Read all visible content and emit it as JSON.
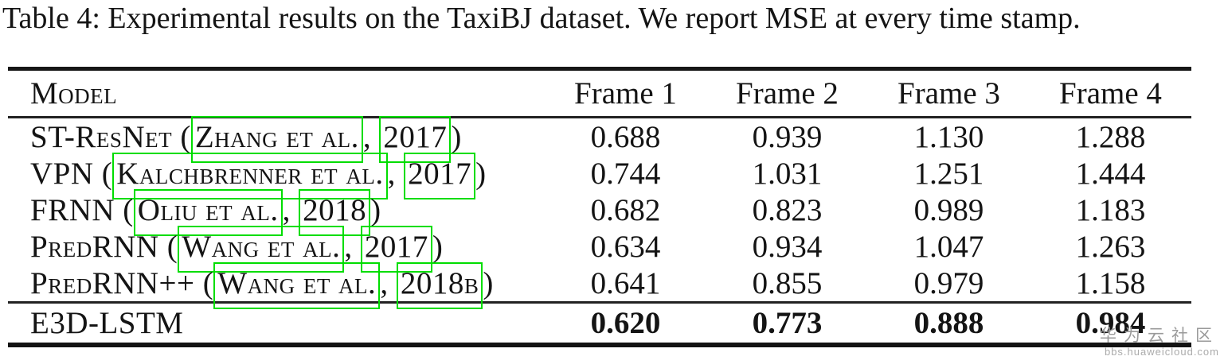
{
  "caption": "Table 4: Experimental results on the TaxiBJ dataset. We report MSE at every time stamp.",
  "link_box_color": "#00dd00",
  "table": {
    "headers": [
      "Model",
      "Frame 1",
      "Frame 2",
      "Frame 3",
      "Frame 4"
    ],
    "rows": [
      {
        "model_prefix": "ST-ResNet (",
        "citation_author": "Zhang et al.",
        "separator": ", ",
        "citation_year": "2017",
        "model_suffix": ")",
        "values": [
          "0.688",
          "0.939",
          "1.130",
          "1.288"
        ]
      },
      {
        "model_prefix": "VPN (",
        "citation_author": "Kalchbrenner et al.",
        "separator": ", ",
        "citation_year": "2017",
        "model_suffix": ")",
        "values": [
          "0.744",
          "1.031",
          "1.251",
          "1.444"
        ]
      },
      {
        "model_prefix": "FRNN (",
        "citation_author": "Oliu et al.",
        "separator": ", ",
        "citation_year": "2018",
        "model_suffix": ")",
        "values": [
          "0.682",
          "0.823",
          "0.989",
          "1.183"
        ]
      },
      {
        "model_prefix": "PredRNN (",
        "citation_author": "Wang et al.",
        "separator": ", ",
        "citation_year": "2017",
        "model_suffix": ")",
        "values": [
          "0.634",
          "0.934",
          "1.047",
          "1.263"
        ]
      },
      {
        "model_prefix": "PredRNN++ (",
        "citation_author": "Wang et al.",
        "separator": ", ",
        "citation_year": "2018b",
        "model_suffix": ")",
        "values": [
          "0.641",
          "0.855",
          "0.979",
          "1.158"
        ]
      }
    ],
    "final_row": {
      "name": "E3D-LSTM",
      "values": [
        "0.620",
        "0.773",
        "0.888",
        "0.984"
      ]
    }
  },
  "watermark": {
    "title": "华为云社区",
    "url": "bbs.huaweicloud.com"
  }
}
